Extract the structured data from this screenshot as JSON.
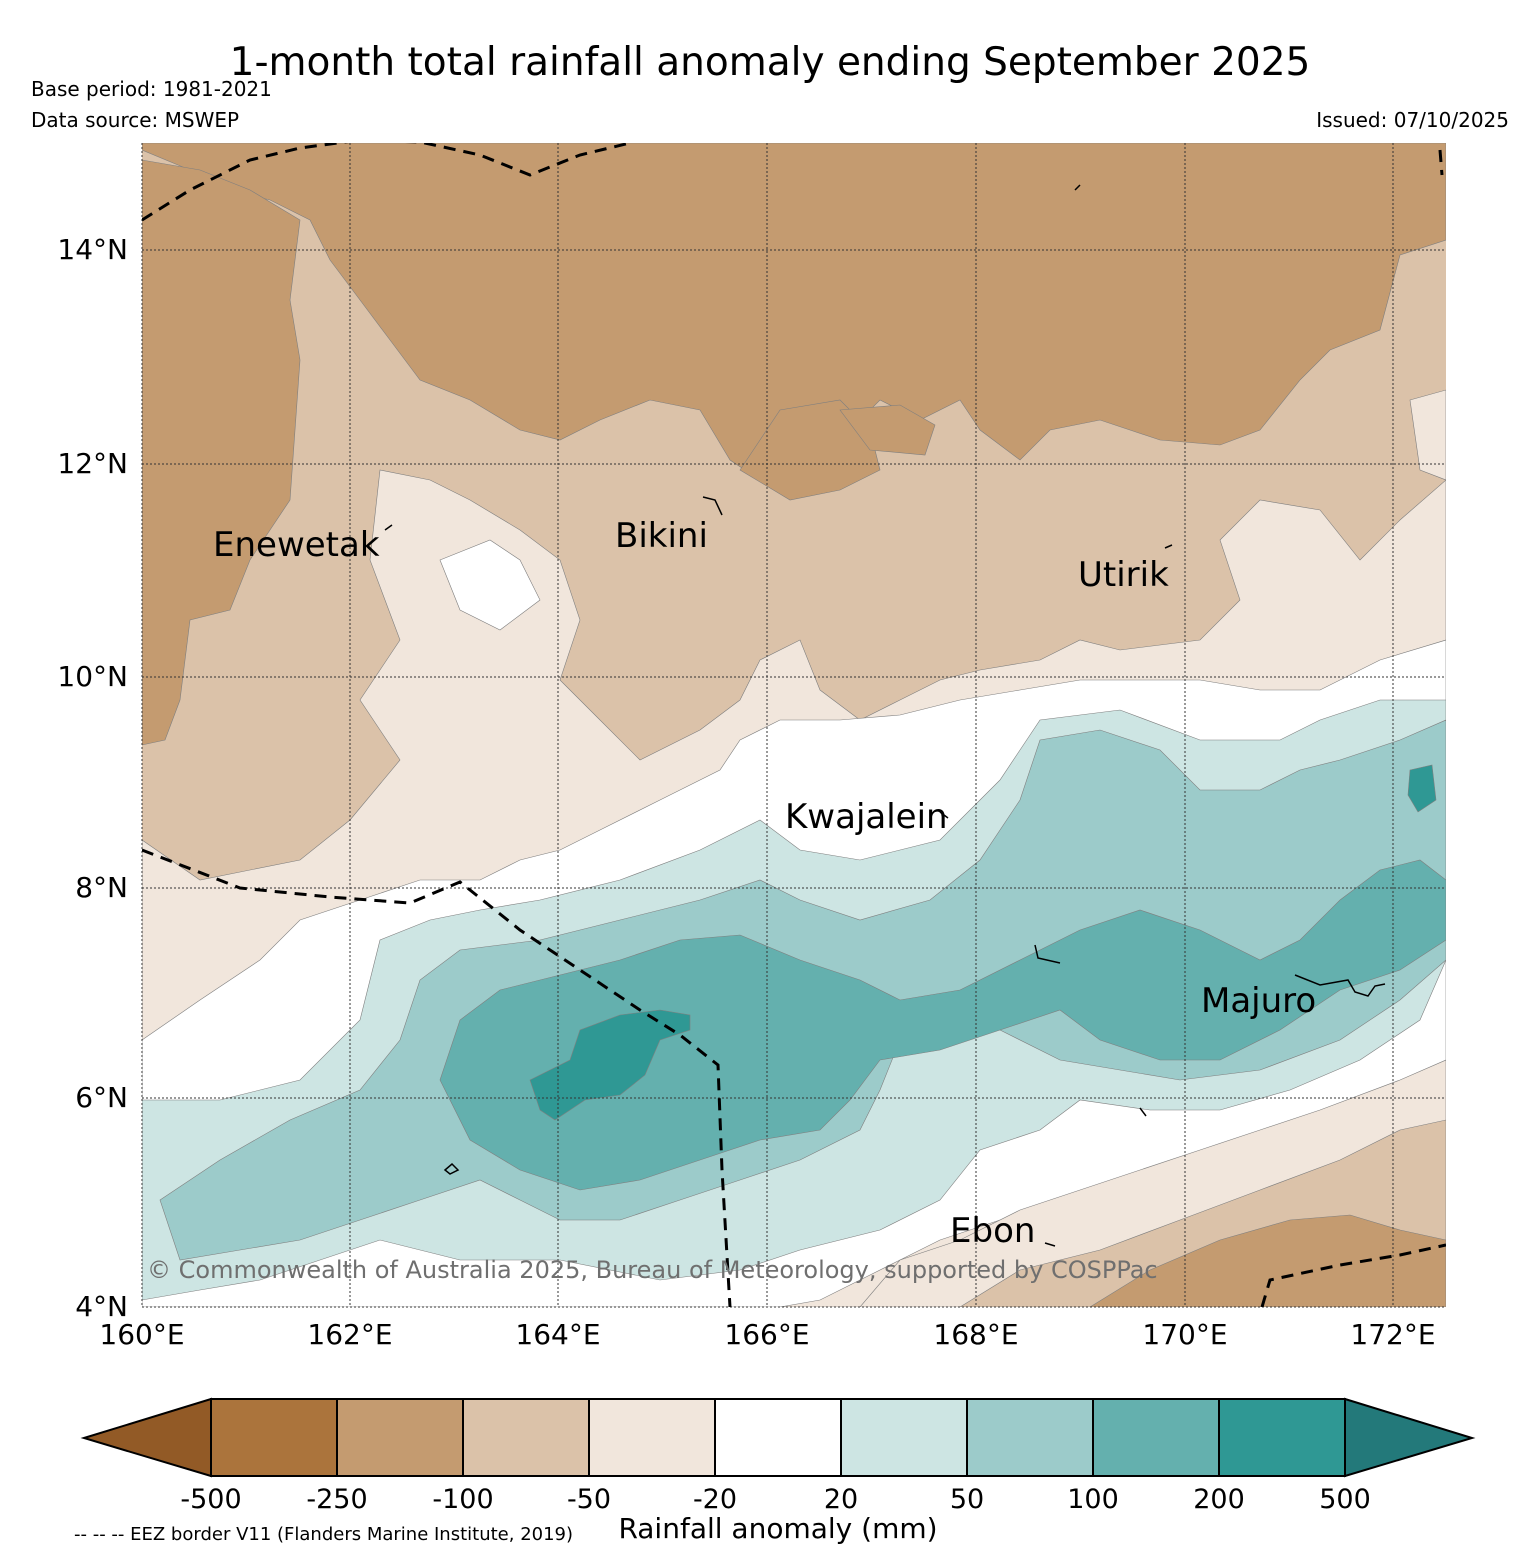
{
  "header": {
    "title": "1-month total rainfall anomaly ending September 2025",
    "base_period": "Base period: 1981-2021",
    "data_source": "Data source: MSWEP",
    "issued": "Issued: 07/10/2025"
  },
  "map": {
    "lat_labels": [
      "14°N",
      "12°N",
      "10°N",
      "8°N",
      "6°N",
      "4°N"
    ],
    "lon_labels": [
      "160°E",
      "162°E",
      "164°E",
      "166°E",
      "168°E",
      "170°E",
      "172°E"
    ],
    "places": {
      "enewetak": "Enewetak",
      "bikini": "Bikini",
      "utirik": "Utirik",
      "kwajalein": "Kwajalein",
      "majuro": "Majuro",
      "ebon": "Ebon"
    },
    "copyright": "© Commonwealth of Australia 2025, Bureau of Meteorology, supported by COSPPac"
  },
  "colorbar": {
    "label": "Rainfall anomaly (mm)",
    "ticks": [
      "-500",
      "-250",
      "-100",
      "-50",
      "-20",
      "20",
      "50",
      "100",
      "200",
      "500"
    ],
    "colors": {
      "lt_-500": "#925a26",
      "-500_-250": "#ab743c",
      "-250_-100": "#c49b70",
      "-100_-50": "#dbc2a9",
      "-50_-20": "#f1e6dc",
      "-20_20": "#ffffff",
      "20_50": "#cde5e3",
      "50_100": "#9ccbca",
      "100_200": "#64b0ae",
      "200_500": "#2f9894",
      "gt_500": "#23797a"
    }
  },
  "footnote": {
    "eez_note": "-- -- -- EEZ border V11 (Flanders Marine Institute, 2019)"
  }
}
